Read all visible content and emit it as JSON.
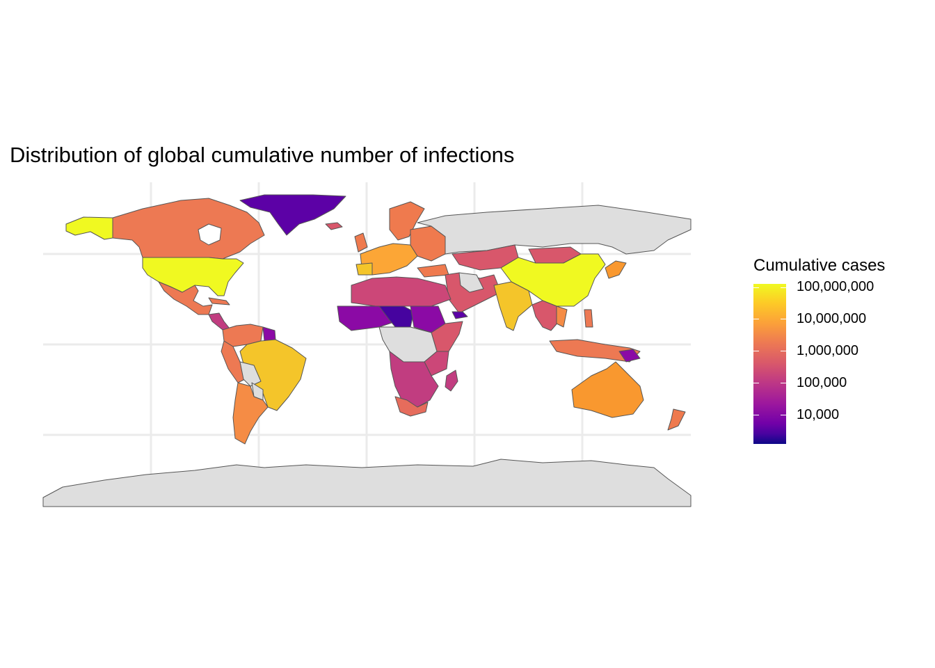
{
  "title": "Distribution of global cumulative number of infections",
  "legend": {
    "title": "Cumulative cases",
    "scale": "log10",
    "palette": "plasma",
    "colors": {
      "low": "#0d0887",
      "high": "#f0f921",
      "missing": "#dedede",
      "border": "#555555"
    },
    "breaks": [
      "100,000,000",
      "10,000,000",
      "1,000,000",
      "100,000",
      "10,000"
    ]
  },
  "map": {
    "type": "choropleth",
    "projection": "equirectangular",
    "gridlines": true,
    "regions": [
      {
        "name": "United States",
        "level": "100M+",
        "color": "#f0f921"
      },
      {
        "name": "Alaska",
        "level": "100M+",
        "color": "#f0f921"
      },
      {
        "name": "Canada",
        "level": "1M-10M",
        "color": "#ed7953"
      },
      {
        "name": "Greenland",
        "level": "10K",
        "color": "#5c01a6"
      },
      {
        "name": "Mexico",
        "level": "1M-10M",
        "color": "#ed7953"
      },
      {
        "name": "Brazil",
        "level": "10M-100M",
        "color": "#f4c52a"
      },
      {
        "name": "Argentina",
        "level": "1M-10M",
        "color": "#f58c45"
      },
      {
        "name": "China",
        "level": "100M+",
        "color": "#f0f921"
      },
      {
        "name": "India",
        "level": "10M-100M",
        "color": "#f4c52a"
      },
      {
        "name": "Russia",
        "level": "no data",
        "color": "#dedede"
      },
      {
        "name": "Australia",
        "level": "10M",
        "color": "#f9982f"
      },
      {
        "name": "Antarctica",
        "level": "no data",
        "color": "#dedede"
      },
      {
        "name": "Europe",
        "level": "1M-10M",
        "color": "#ef7a4e"
      },
      {
        "name": "North Africa",
        "level": "100K-1M",
        "color": "#cc4778"
      },
      {
        "name": "Sahel",
        "level": "10K-100K",
        "color": "#8b0aa5"
      },
      {
        "name": "Central Africa",
        "level": "no data",
        "color": "#dedede"
      },
      {
        "name": "Southern Africa",
        "level": "100K-1M",
        "color": "#c13d80"
      },
      {
        "name": "South Africa",
        "level": "1M-10M",
        "color": "#e66c5c"
      },
      {
        "name": "Southeast Asia",
        "level": "1M-10M",
        "color": "#ed7953"
      },
      {
        "name": "Japan",
        "level": "10M",
        "color": "#f9982f"
      },
      {
        "name": "New Zealand",
        "level": "1M-10M",
        "color": "#ef7a4e"
      }
    ]
  }
}
